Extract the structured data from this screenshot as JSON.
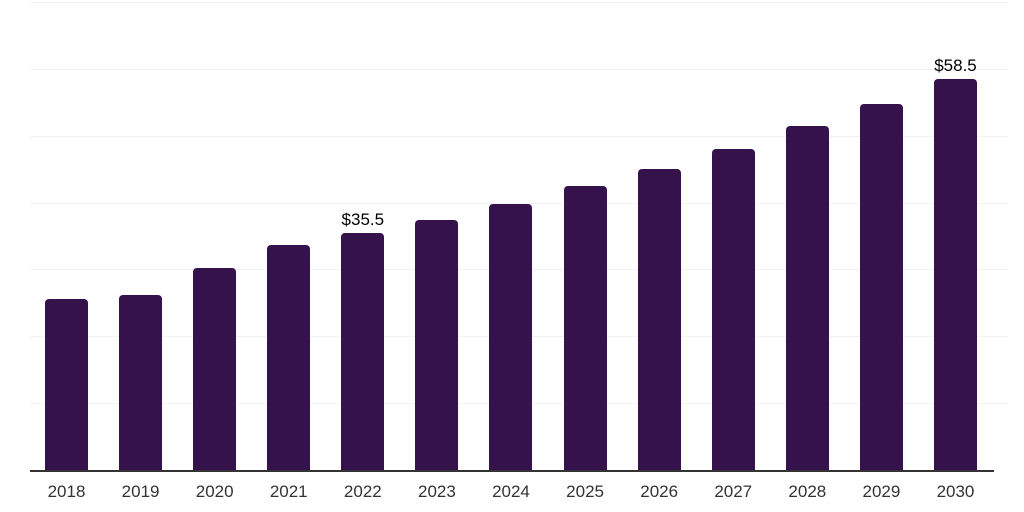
{
  "chart_data": {
    "type": "bar",
    "title": "",
    "xlabel": "",
    "ylabel": "",
    "categories": [
      "2018",
      "2019",
      "2020",
      "2021",
      "2022",
      "2023",
      "2024",
      "2025",
      "2026",
      "2027",
      "2028",
      "2029",
      "2030"
    ],
    "values": [
      25.6,
      26.2,
      30.2,
      33.7,
      35.5,
      37.4,
      39.8,
      42.5,
      45.0,
      48.0,
      51.5,
      54.7,
      58.5
    ],
    "data_labels": [
      "",
      "",
      "",
      "",
      "$35.5",
      "",
      "",
      "",
      "",
      "",
      "",
      "",
      "$58.5"
    ],
    "ylim": [
      0,
      70
    ],
    "grid_step": 10,
    "grid_on": true,
    "legend": "none",
    "colors": {
      "bar": "#36124C",
      "gridline": "#F2F2F2",
      "axis_line": "#333333",
      "tick_label": "#333333",
      "data_label": "#000000",
      "background": "#FFFFFF"
    }
  }
}
